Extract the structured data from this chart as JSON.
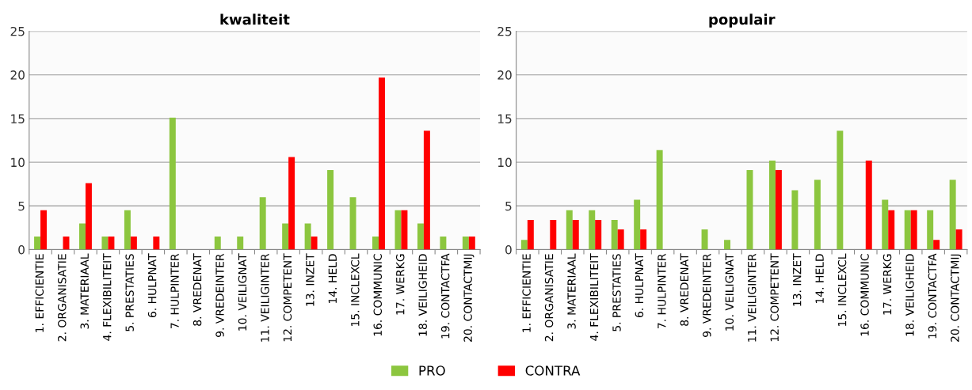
{
  "chart_data": [
    {
      "type": "bar",
      "title": "kwaliteit",
      "categories": [
        "1. EFFICIENTIE",
        "2. ORGANISATIE",
        "3. MATERIAAL",
        "4. FLEXIBILITEIT",
        "5. PRESTATIES",
        "6. HULPNAT",
        "7. HULPINTER",
        "8. VREDENAT",
        "9. VREDEINTER",
        "10. VEILIGNAT",
        "11. VEILIGINTER",
        "12. COMPETENT",
        "13. INZET",
        "14. HELD",
        "15. INCLEXCL",
        "16. COMMUNIC",
        "17. WERKG",
        "18. VEILIGHEID",
        "19. CONTACTFA",
        "20. CONTACTMIJ"
      ],
      "series": [
        {
          "name": "PRO",
          "color": "#8cc63f",
          "values": [
            1.5,
            null,
            3,
            1.5,
            4.5,
            null,
            15.1,
            null,
            1.5,
            1.5,
            6,
            3,
            3,
            9.1,
            6,
            1.5,
            4.5,
            3,
            1.5,
            1.5
          ]
        },
        {
          "name": "CONTRA",
          "color": "#ff0000",
          "values": [
            4.5,
            1.5,
            7.6,
            1.5,
            1.5,
            1.5,
            null,
            null,
            null,
            null,
            null,
            10.6,
            1.5,
            null,
            null,
            19.7,
            4.5,
            13.6,
            null,
            1.5
          ]
        }
      ],
      "ylim": [
        0,
        25
      ],
      "yticks": [
        0,
        5,
        10,
        15,
        20,
        25
      ],
      "grid": "y",
      "legend": "bottom"
    },
    {
      "type": "bar",
      "title": "populair",
      "categories": [
        "1. EFFICIENTIE",
        "2. ORGANISATIE",
        "3. MATERIAAL",
        "4. FLEXIBILITEIT",
        "5. PRESTATIES",
        "6. HULPNAT",
        "7. HULPINTER",
        "8. VREDENAT",
        "9. VREDEINTER",
        "10. VEILIGNAT",
        "11. VEILIGINTER",
        "12. COMPETENT",
        "13. INZET",
        "14. HELD",
        "15. INCLEXCL",
        "16. COMMUNIC",
        "17. WERKG",
        "18. VEILIGHEID",
        "19. CONTACTFA",
        "20. CONTACTMIJ"
      ],
      "series": [
        {
          "color": "#8cc63f",
          "values": [
            1.1,
            null,
            4.5,
            4.5,
            3.4,
            5.7,
            11.4,
            null,
            2.3,
            1.1,
            9.1,
            10.2,
            6.8,
            8,
            13.6,
            null,
            5.7,
            4.5,
            4.5,
            8
          ]
        },
        {
          "color": "#ff0000",
          "values": [
            3.4,
            3.4,
            3.4,
            3.4,
            2.3,
            2.3,
            null,
            null,
            null,
            null,
            null,
            9.1,
            null,
            null,
            null,
            10.2,
            4.5,
            4.5,
            1.1,
            2.3
          ]
        }
      ],
      "ylim": [
        0,
        25
      ],
      "yticks": [
        0,
        5,
        10,
        15,
        20,
        25
      ],
      "grid": "y"
    }
  ]
}
